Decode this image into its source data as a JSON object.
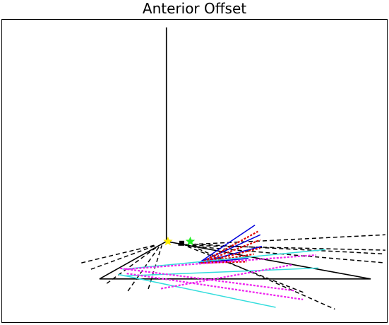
{
  "chart_data": {
    "type": "line",
    "title": "Anterior Offset",
    "xlabel": "",
    "ylabel": "",
    "grid": false,
    "legend": "none",
    "colors": {
      "frame": "#000000",
      "solid": "#000000",
      "dashed": "#000000",
      "blue": "#0000dd",
      "red": "#dd0000",
      "cyan": "#33dddd",
      "magenta": "#ee22ee",
      "yellow": "#ffee00",
      "green": "#22ee22",
      "marker_black": "#000000"
    },
    "xlim": [
      0,
      1000
    ],
    "ylim": [
      0,
      1000
    ],
    "series": [
      {
        "style": "solid",
        "color": "black",
        "points": [
          [
            427,
            975
          ],
          [
            427,
            267
          ]
        ]
      },
      {
        "style": "solid",
        "color": "black",
        "points": [
          [
            253,
            143
          ],
          [
            427,
            267
          ],
          [
            958,
            143
          ],
          [
            253,
            143
          ]
        ]
      },
      {
        "style": "dashed",
        "color": "black",
        "points": [
          [
            206,
            196
          ],
          [
            398,
            255
          ]
        ]
      },
      {
        "style": "dashed",
        "color": "black",
        "points": [
          [
            231,
            175
          ],
          [
            402,
            255
          ]
        ]
      },
      {
        "style": "dashed",
        "color": "black",
        "points": [
          [
            272,
            128
          ],
          [
            407,
            253
          ]
        ]
      },
      {
        "style": "dashed",
        "color": "black",
        "points": [
          [
            327,
            103
          ],
          [
            411,
            255
          ]
        ]
      },
      {
        "style": "dashed",
        "color": "black",
        "points": [
          [
            380,
            110
          ],
          [
            415,
            254
          ]
        ]
      },
      {
        "style": "dashed",
        "color": "black",
        "points": [
          [
            457,
            255
          ],
          [
            996,
            289
          ]
        ]
      },
      {
        "style": "dashed",
        "color": "black",
        "points": [
          [
            476,
            254
          ],
          [
            996,
            238
          ]
        ]
      },
      {
        "style": "dashed",
        "color": "black",
        "points": [
          [
            484,
            252
          ],
          [
            996,
            196
          ]
        ]
      },
      {
        "style": "dashed",
        "color": "black",
        "points": [
          [
            493,
            252
          ],
          [
            865,
            43
          ]
        ]
      },
      {
        "style": "dashed",
        "color": "black",
        "points": [
          [
            482,
            250
          ],
          [
            784,
            98
          ]
        ]
      },
      {
        "style": "dashed",
        "color": "black",
        "points": [
          [
            500,
            258
          ],
          [
            990,
            226
          ]
        ]
      },
      {
        "style": "solid",
        "color": "blue",
        "points": [
          [
            511,
            196
          ],
          [
            657,
            321
          ]
        ]
      },
      {
        "style": "solid",
        "color": "blue",
        "points": [
          [
            511,
            196
          ],
          [
            671,
            289
          ]
        ]
      },
      {
        "style": "solid",
        "color": "blue",
        "points": [
          [
            511,
            196
          ],
          [
            675,
            251
          ]
        ]
      },
      {
        "style": "solid",
        "color": "blue",
        "points": [
          [
            511,
            196
          ],
          [
            640,
            211
          ]
        ]
      },
      {
        "style": "dashed",
        "color": "red",
        "points": [
          [
            516,
            196
          ],
          [
            665,
            300
          ]
        ]
      },
      {
        "style": "dashed",
        "color": "red",
        "points": [
          [
            516,
            196
          ],
          [
            671,
            272
          ]
        ]
      },
      {
        "style": "dashed",
        "color": "red",
        "points": [
          [
            516,
            196
          ],
          [
            671,
            245
          ]
        ]
      },
      {
        "style": "dashed",
        "color": "red",
        "points": [
          [
            516,
            196
          ],
          [
            654,
            225
          ]
        ]
      },
      {
        "style": "dashed",
        "color": "red",
        "points": [
          [
            516,
            196
          ],
          [
            636,
            200
          ]
        ]
      },
      {
        "style": "solid",
        "color": "cyan",
        "points": [
          [
            313,
            175
          ],
          [
            840,
            240
          ]
        ]
      },
      {
        "style": "solid",
        "color": "cyan",
        "points": [
          [
            318,
            153
          ],
          [
            822,
            179
          ]
        ]
      },
      {
        "style": "solid",
        "color": "cyan",
        "points": [
          [
            302,
            158
          ],
          [
            711,
            49
          ]
        ]
      },
      {
        "style": "dashed",
        "color": "magenta",
        "points": [
          [
            320,
            175
          ],
          [
            816,
            222
          ]
        ]
      },
      {
        "style": "dashed",
        "color": "magenta",
        "points": [
          [
            307,
            178
          ],
          [
            762,
            104
          ]
        ]
      },
      {
        "style": "dashed",
        "color": "magenta",
        "points": [
          [
            324,
            161
          ],
          [
            782,
            75
          ]
        ]
      },
      {
        "style": "dashed",
        "color": "magenta",
        "points": [
          [
            413,
            111
          ],
          [
            755,
            190
          ]
        ]
      }
    ],
    "markers": [
      {
        "shape": "star",
        "color": "yellow",
        "point": [
          431,
          267
        ]
      },
      {
        "shape": "star",
        "color": "green",
        "point": [
          489,
          267
        ]
      },
      {
        "shape": "square",
        "color": "marker_black",
        "point": [
          467,
          261
        ]
      }
    ]
  }
}
